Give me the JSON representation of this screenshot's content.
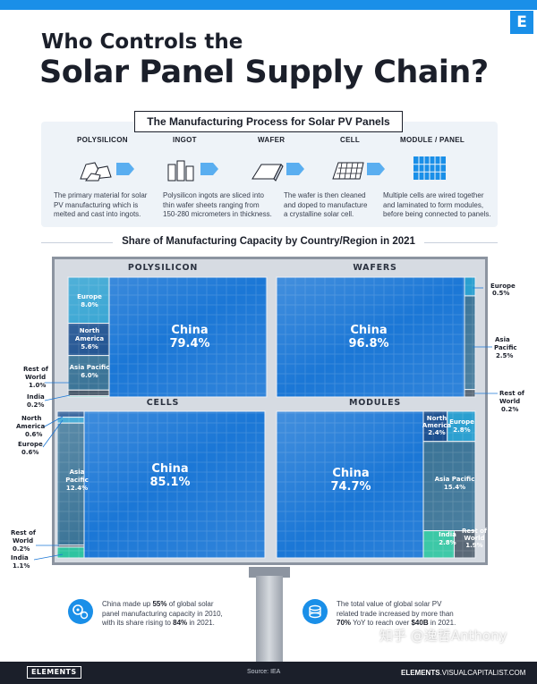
{
  "header": {
    "logo_letter": "E",
    "title_line1": "Who Controls the",
    "title_line2": "Solar Panel Supply Chain?"
  },
  "process": {
    "title": "The Manufacturing Process for Solar PV Panels",
    "steps": [
      {
        "label": "POLYSILICON",
        "icon": "polysilicon-rocks-icon",
        "desc": [
          "The primary material for solar",
          "PV manufacturing which is",
          "melted and cast into ingots."
        ]
      },
      {
        "label": "INGOT",
        "icon": "ingot-blocks-icon",
        "desc": [
          "Polysilicon ingots are sliced into",
          "thin wafer sheets ranging from",
          "150-280 micrometers in thickness."
        ]
      },
      {
        "label": "WAFER",
        "icon": "wafer-sheet-icon",
        "desc": [
          "The wafer is then cleaned",
          "and doped to manufacture",
          "a crystalline solar cell."
        ]
      },
      {
        "label": "CELL",
        "icon": "solar-cell-icon",
        "desc": []
      },
      {
        "label": "MODULE / PANEL",
        "icon": "solar-panel-icon",
        "desc": [
          "Multiple cells are wired together",
          "and laminated to form modules,",
          "before being connected to panels."
        ]
      }
    ]
  },
  "colors": {
    "china": "#1b77d6",
    "europe": "#2a9fd0",
    "north_america": "#1b4f8f",
    "asia_pacific": "#3b7497",
    "india": "#2ec4a0",
    "rest_of_world": "#4a5a6a"
  },
  "chart_data": {
    "type": "treemap",
    "title": "Share of Manufacturing Capacity by Country/Region in 2021",
    "panels": [
      {
        "name": "POLYSILICON",
        "series": [
          {
            "name": "China",
            "value": 79.4
          },
          {
            "name": "Europe",
            "value": 8.0
          },
          {
            "name": "North America",
            "value": 5.6
          },
          {
            "name": "Asia Pacific",
            "value": 6.0
          },
          {
            "name": "Rest of World",
            "value": 1.0
          },
          {
            "name": "India",
            "value": 0.2
          }
        ]
      },
      {
        "name": "WAFERS",
        "series": [
          {
            "name": "China",
            "value": 96.8
          },
          {
            "name": "Europe",
            "value": 0.5
          },
          {
            "name": "Asia Pacific",
            "value": 2.5
          },
          {
            "name": "Rest of World",
            "value": 0.2
          }
        ]
      },
      {
        "name": "CELLS",
        "series": [
          {
            "name": "China",
            "value": 85.1
          },
          {
            "name": "North America",
            "value": 0.6
          },
          {
            "name": "Europe",
            "value": 0.6
          },
          {
            "name": "Asia Pacific",
            "value": 12.4
          },
          {
            "name": "Rest of World",
            "value": 0.2
          },
          {
            "name": "India",
            "value": 1.1
          }
        ]
      },
      {
        "name": "MODULES",
        "series": [
          {
            "name": "China",
            "value": 74.7
          },
          {
            "name": "North America",
            "value": 2.4
          },
          {
            "name": "Europe",
            "value": 2.8
          },
          {
            "name": "Asia Pacific",
            "value": 15.4
          },
          {
            "name": "India",
            "value": 2.8
          },
          {
            "name": "Rest of World",
            "value": 1.9
          }
        ]
      }
    ]
  },
  "labels": {
    "poly_china_name": "China",
    "poly_china_val": "79.4%",
    "poly_europe_name": "Europe",
    "poly_europe_val": "8.0%",
    "poly_na_name1": "North",
    "poly_na_name2": "America",
    "poly_na_val": "5.6%",
    "poly_ap_name": "Asia Pacific",
    "poly_ap_val": "6.0%",
    "poly_row_name1": "Rest of",
    "poly_row_name2": "World",
    "poly_row_val": "1.0%",
    "poly_india_name": "India",
    "poly_india_val": "0.2%",
    "waf_china_name": "China",
    "waf_china_val": "96.8%",
    "waf_europe_name": "Europe",
    "waf_europe_val": "0.5%",
    "waf_ap_name1": "Asia",
    "waf_ap_name2": "Pacific",
    "waf_ap_val": "2.5%",
    "waf_row_name1": "Rest of",
    "waf_row_name2": "World",
    "waf_row_val": "0.2%",
    "cell_china_name": "China",
    "cell_china_val": "85.1%",
    "cell_na_name1": "North",
    "cell_na_name2": "America",
    "cell_na_val": "0.6%",
    "cell_europe_name": "Europe",
    "cell_europe_val": "0.6%",
    "cell_ap_name1": "Asia",
    "cell_ap_name2": "Pacific",
    "cell_ap_val": "12.4%",
    "cell_row_name1": "Rest of",
    "cell_row_name2": "World",
    "cell_row_val": "0.2%",
    "cell_india_name": "India",
    "cell_india_val": "1.1%",
    "mod_china_name": "China",
    "mod_china_val": "74.7%",
    "mod_na_name1": "North",
    "mod_na_name2": "America",
    "mod_na_val": "2.4%",
    "mod_europe_name": "Europe",
    "mod_europe_val": "2.8%",
    "mod_ap_name": "Asia Pacific",
    "mod_ap_val": "15.4%",
    "mod_india_name": "India",
    "mod_india_val": "2.8%",
    "mod_row_name1": "Rest of",
    "mod_row_name2": "World",
    "mod_row_val": "1.9%"
  },
  "footer_stats": {
    "left": {
      "pre": "China made up ",
      "hl1": "55%",
      "mid": " of global solar panel manufacturing capacity in 2010, with its share rising to ",
      "hl2": "84%",
      "post": " in 2021.",
      "line1_a": "China made up ",
      "line1_b": "55%",
      "line1_c": " of global solar",
      "line2": "panel manufacturing capacity in 2010,",
      "line3_a": "with its share rising to ",
      "line3_b": "84%",
      "line3_c": " in 2021.",
      "icon": "gears-icon"
    },
    "right": {
      "line1": "The total value of global solar PV",
      "line2": "related trade increased by more than",
      "line3_a": "70%",
      "line3_b": " YoY to reach over ",
      "line3_c": "$40B",
      "line3_d": " in 2021.",
      "icon": "coins-icon"
    }
  },
  "bottom": {
    "brand": "ELEMENTS",
    "source": "Source: IEA",
    "site_a": "ELEMENTS",
    "site_b": ".VISUALCAPITALIST.COM",
    "watermark": "知乎 @逸哲Anthony"
  }
}
